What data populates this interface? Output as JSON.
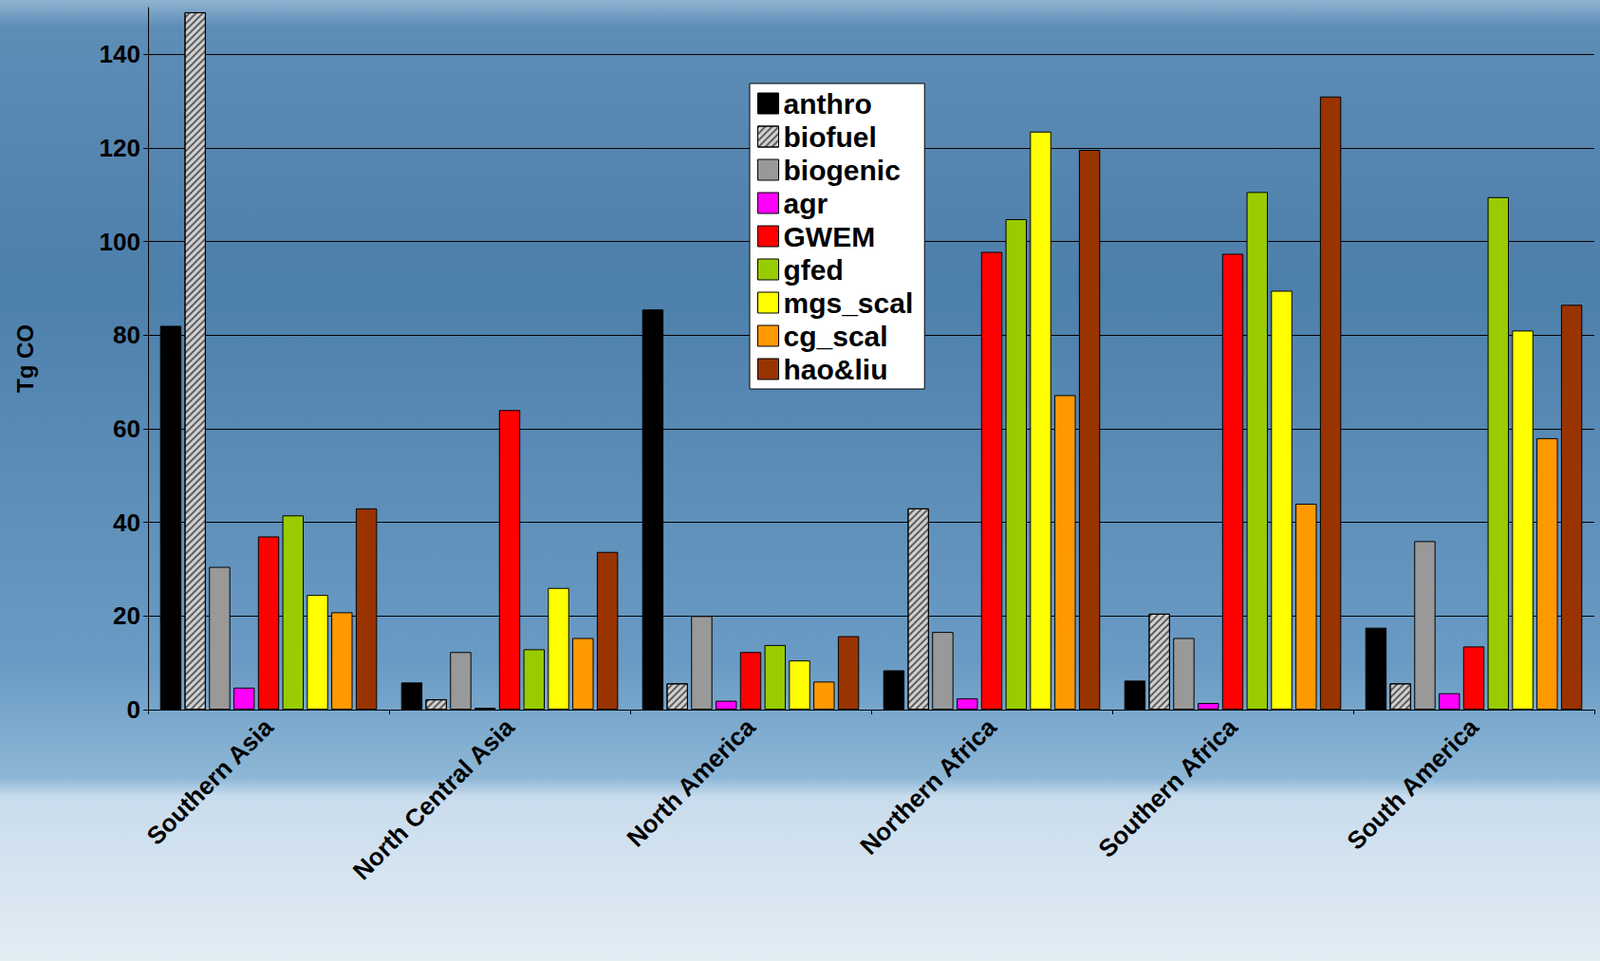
{
  "chart_data": {
    "type": "bar",
    "y_label": "Tg CO",
    "categories": [
      "Southern Asia",
      "North Central Asia",
      "North America",
      "Northern Africa",
      "Southern Africa",
      "South America"
    ],
    "series": [
      {
        "name": "anthro",
        "color": "#000000",
        "values": [
          82,
          5.8,
          85.5,
          8.4,
          6.2,
          17.5
        ]
      },
      {
        "name": "biofuel",
        "color": "#d0d0d0",
        "marker": "hatch",
        "values": [
          149,
          2.2,
          5.6,
          43,
          20.5,
          5.6
        ]
      },
      {
        "name": "biogenic",
        "color": "#999999",
        "values": [
          30.5,
          12.3,
          20,
          16.6,
          15.3,
          36
        ]
      },
      {
        "name": "agr",
        "color": "#ff00ff",
        "values": [
          4.7,
          0.4,
          1.9,
          2.4,
          1.4,
          3.5
        ]
      },
      {
        "name": "GWEM",
        "color": "#ff0000",
        "values": [
          37,
          64,
          12.3,
          97.8,
          97.4,
          13.5
        ]
      },
      {
        "name": "gfed",
        "color": "#99cc00",
        "values": [
          41.5,
          12.9,
          13.8,
          104.8,
          110.6,
          109.5
        ]
      },
      {
        "name": "mgs_scal",
        "color": "#ffff00",
        "values": [
          24.5,
          26,
          10.5,
          123.5,
          89.5,
          81
        ]
      },
      {
        "name": "cg_scal",
        "color": "#ff9900",
        "values": [
          20.8,
          15.3,
          6,
          67.2,
          44,
          58
        ]
      },
      {
        "name": "hao&liu",
        "color": "#993300",
        "values": [
          43,
          33.7,
          15.7,
          119.6,
          131,
          86.5
        ]
      }
    ],
    "ylim": [
      0,
      150
    ],
    "yticks": [
      0,
      20,
      40,
      60,
      80,
      100,
      120,
      140
    ],
    "grid": true,
    "legend": "top"
  }
}
